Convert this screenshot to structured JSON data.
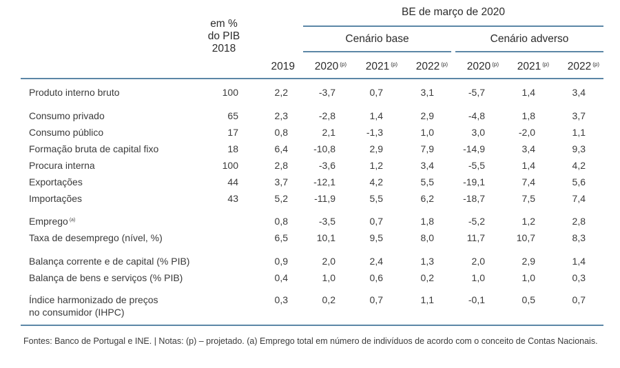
{
  "header": {
    "group_title": "BE de março de 2020",
    "pib_col": [
      "em %",
      "do PIB",
      "2018"
    ],
    "year_2019": "2019",
    "scenario_base": "Cenário base",
    "scenario_adverse": "Cenário adverso",
    "proj_years": [
      "2020",
      "2021",
      "2022",
      "2020",
      "2021",
      "2022"
    ],
    "proj_mark": "(p)"
  },
  "rows": [
    {
      "label": "Produto interno bruto",
      "values": [
        "100",
        "2,2",
        "-3,7",
        "0,7",
        "3,1",
        "-5,7",
        "1,4",
        "3,4"
      ]
    },
    {
      "label": "Consumo privado",
      "values": [
        "65",
        "2,3",
        "-2,8",
        "1,4",
        "2,9",
        "-4,8",
        "1,8",
        "3,7"
      ]
    },
    {
      "label": "Consumo público",
      "values": [
        "17",
        "0,8",
        "2,1",
        "-1,3",
        "1,0",
        "3,0",
        "-2,0",
        "1,1"
      ]
    },
    {
      "label": "Formação bruta de capital fixo",
      "values": [
        "18",
        "6,4",
        "-10,8",
        "2,9",
        "7,9",
        "-14,9",
        "3,4",
        "9,3"
      ]
    },
    {
      "label": "Procura interna",
      "values": [
        "100",
        "2,8",
        "-3,6",
        "1,2",
        "3,4",
        "-5,5",
        "1,4",
        "4,2"
      ]
    },
    {
      "label": "Exportações",
      "values": [
        "44",
        "3,7",
        "-12,1",
        "4,2",
        "5,5",
        "-19,1",
        "7,4",
        "5,6"
      ]
    },
    {
      "label": "Importações",
      "values": [
        "43",
        "5,2",
        "-11,9",
        "5,5",
        "6,2",
        "-18,7",
        "7,5",
        "7,4"
      ]
    },
    {
      "label": "Emprego",
      "note": "(a)",
      "values": [
        "",
        "0,8",
        "-3,5",
        "0,7",
        "1,8",
        "-5,2",
        "1,2",
        "2,8"
      ]
    },
    {
      "label": "Taxa de desemprego (nível, %)",
      "values": [
        "",
        "6,5",
        "10,1",
        "9,5",
        "8,0",
        "11,7",
        "10,7",
        "8,3"
      ]
    },
    {
      "label": "Balança corrente e de capital (% PIB)",
      "values": [
        "",
        "0,9",
        "2,0",
        "2,4",
        "1,3",
        "2,0",
        "2,9",
        "1,4"
      ]
    },
    {
      "label": "Balança de bens e serviços (% PIB)",
      "values": [
        "",
        "0,4",
        "1,0",
        "0,6",
        "0,2",
        "1,0",
        "1,0",
        "0,3"
      ]
    },
    {
      "label": "Índice harmonizado de preços",
      "label2": "no consumidor (IHPC)",
      "values": [
        "",
        "0,3",
        "0,2",
        "0,7",
        "1,1",
        "-0,1",
        "0,5",
        "0,7"
      ]
    }
  ],
  "footnote": "Fontes: Banco de Portugal e INE.  |  Notas: (p) – projetado. (a) Emprego total em número de indivíduos de acordo com o conceito de Contas Nacionais."
}
